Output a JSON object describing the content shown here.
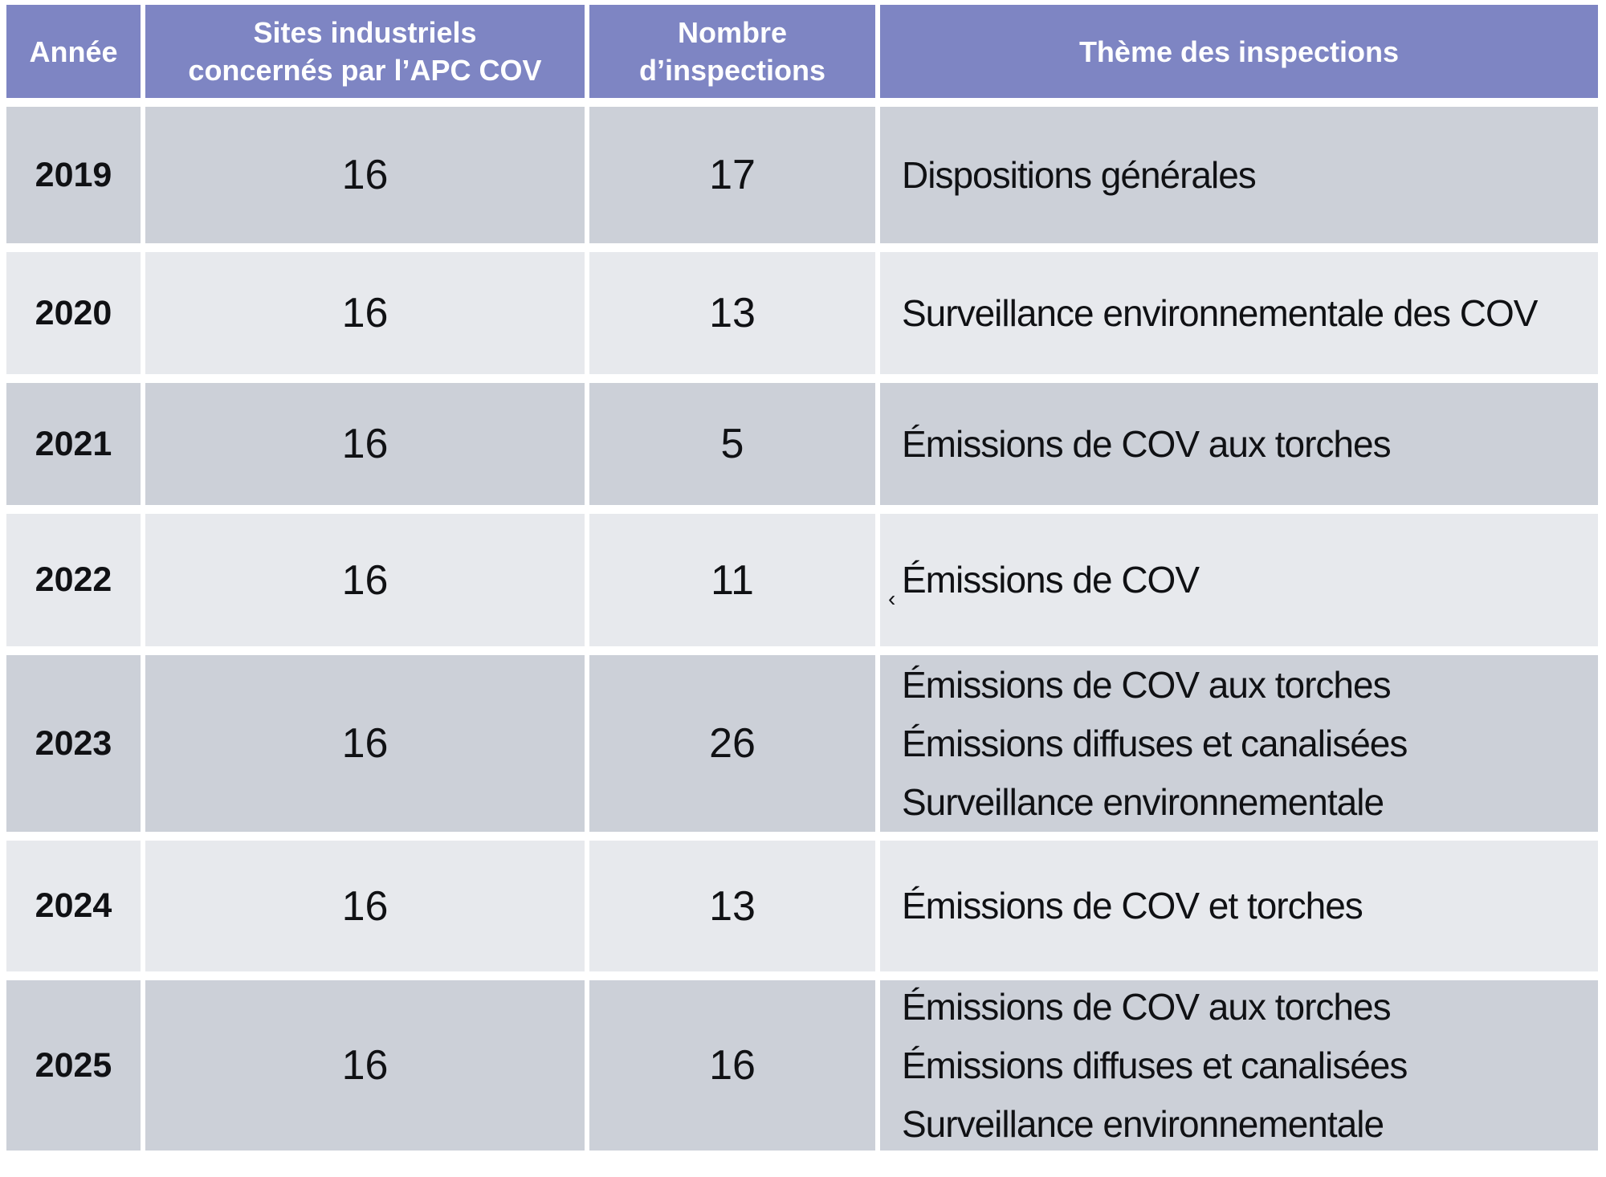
{
  "colors": {
    "header_bg": "#7e85c3",
    "row_dark": "#ccd0d8",
    "row_light": "#e7e9ed",
    "header_text": "#ffffff",
    "body_text": "#101114",
    "page_bg": "#ffffff"
  },
  "chart_data": {
    "type": "table",
    "title": "",
    "columns": [
      "Année",
      "Sites industriels concernés par l’APC COV",
      "Nombre d’inspections",
      "Thème des inspections"
    ],
    "header_lines": [
      [
        "Année"
      ],
      [
        "Sites industriels",
        "concernés par l’APC COV"
      ],
      [
        "Nombre",
        "d’inspections"
      ],
      [
        "Thème des inspections"
      ]
    ],
    "rows": [
      {
        "annee": "2019",
        "sites": "16",
        "inspections": "17",
        "themes": [
          "Dispositions générales"
        ]
      },
      {
        "annee": "2020",
        "sites": "16",
        "inspections": "13",
        "themes": [
          "Surveillance environnementale des COV"
        ]
      },
      {
        "annee": "2021",
        "sites": "16",
        "inspections": "5",
        "themes": [
          "Émissions de COV aux torches"
        ]
      },
      {
        "annee": "2022",
        "sites": "16",
        "inspections": "11",
        "themes": [
          "Émissions de COV"
        ],
        "theme_mark": "‹"
      },
      {
        "annee": "2023",
        "sites": "16",
        "inspections": "26",
        "themes": [
          "Émissions de COV aux torches",
          "Émissions diffuses et canalisées",
          "Surveillance environnementale"
        ]
      },
      {
        "annee": "2024",
        "sites": "16",
        "inspections": "13",
        "themes": [
          "Émissions de COV et torches"
        ]
      },
      {
        "annee": "2025",
        "sites": "16",
        "inspections": "16",
        "themes": [
          "Émissions de COV aux torches",
          "Émissions diffuses et canalisées",
          "Surveillance environnementale"
        ]
      }
    ]
  }
}
